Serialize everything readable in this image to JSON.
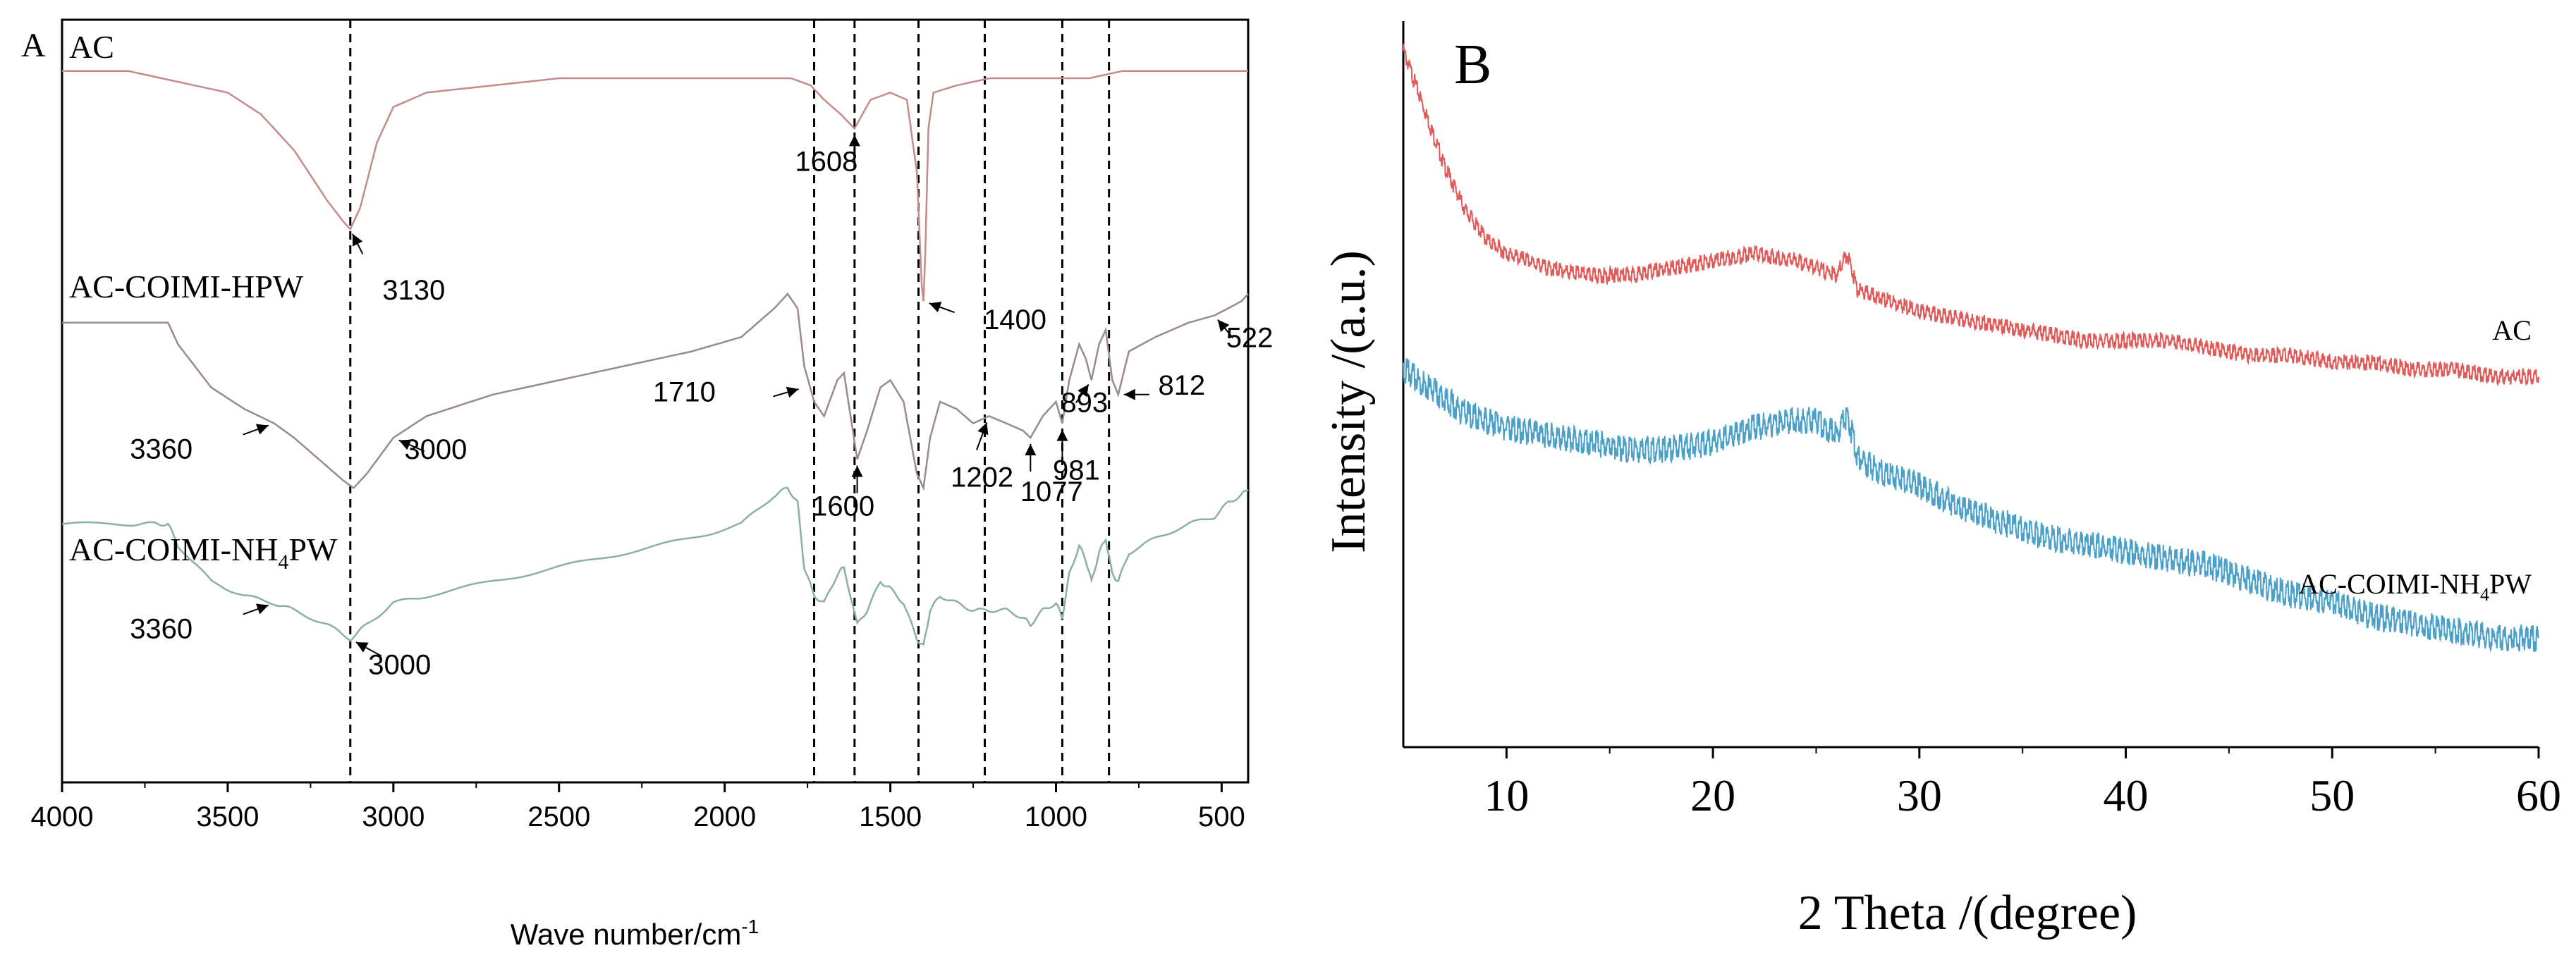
{
  "colors": {
    "ftir_ac": "#c58a8a",
    "ftir_hpw": "#9a8a8a",
    "ftir_nh4": "#8ab0a0",
    "xrd_ac": "#e05a5a",
    "xrd_nh4": "#4aa0c8",
    "axis": "#000000"
  },
  "chart_data": [
    {
      "type": "line",
      "panel_label": "A",
      "xlabel": "Wave number/cm",
      "xlabel_sup": "-1",
      "ylabel": "",
      "xlim": [
        4000,
        420
      ],
      "xticks": [
        4000,
        3500,
        3000,
        2500,
        2000,
        1500,
        1000,
        500
      ],
      "xtick_labels": [
        "4000",
        "3500",
        "3000",
        "2500",
        "2000",
        "1500",
        "1000",
        "500"
      ],
      "ylim": [
        0,
        100
      ],
      "reference_lines": [
        3130,
        1730,
        1608,
        1415,
        1215,
        981,
        840
      ],
      "series": [
        {
          "name": "AC",
          "label": "AC",
          "points": [
            [
              4000,
              96
            ],
            [
              3800,
              96
            ],
            [
              3700,
              95
            ],
            [
              3600,
              94
            ],
            [
              3500,
              93
            ],
            [
              3400,
              90
            ],
            [
              3300,
              85
            ],
            [
              3200,
              78
            ],
            [
              3150,
              75
            ],
            [
              3130,
              74
            ],
            [
              3100,
              77
            ],
            [
              3050,
              86
            ],
            [
              3000,
              91
            ],
            [
              2900,
              93
            ],
            [
              2700,
              94
            ],
            [
              2500,
              95
            ],
            [
              2300,
              95
            ],
            [
              2100,
              95
            ],
            [
              1900,
              95
            ],
            [
              1800,
              95
            ],
            [
              1740,
              94
            ],
            [
              1700,
              92
            ],
            [
              1650,
              90
            ],
            [
              1608,
              88
            ],
            [
              1560,
              92
            ],
            [
              1500,
              93
            ],
            [
              1450,
              92
            ],
            [
              1420,
              82
            ],
            [
              1405,
              66
            ],
            [
              1400,
              64
            ],
            [
              1395,
              70
            ],
            [
              1385,
              88
            ],
            [
              1370,
              93
            ],
            [
              1300,
              94
            ],
            [
              1200,
              95
            ],
            [
              1100,
              95
            ],
            [
              1000,
              95
            ],
            [
              900,
              95
            ],
            [
              800,
              96
            ],
            [
              700,
              96
            ],
            [
              600,
              96
            ],
            [
              500,
              96
            ],
            [
              420,
              96
            ]
          ]
        },
        {
          "name": "AC-COIMI-HPW",
          "label_prefix": "AC-COIMI-HPW",
          "label_sub": "",
          "label_suffix": "",
          "points": [
            [
              4000,
              61
            ],
            [
              3800,
              61
            ],
            [
              3720,
              61
            ],
            [
              3680,
              61
            ],
            [
              3650,
              58
            ],
            [
              3550,
              52
            ],
            [
              3450,
              49
            ],
            [
              3360,
              47
            ],
            [
              3300,
              45
            ],
            [
              3200,
              41
            ],
            [
              3150,
              39
            ],
            [
              3120,
              38
            ],
            [
              3080,
              40
            ],
            [
              3000,
              45
            ],
            [
              2900,
              48
            ],
            [
              2700,
              51
            ],
            [
              2500,
              53
            ],
            [
              2300,
              55
            ],
            [
              2100,
              57
            ],
            [
              1950,
              59
            ],
            [
              1850,
              63
            ],
            [
              1810,
              65
            ],
            [
              1780,
              63
            ],
            [
              1760,
              55
            ],
            [
              1730,
              50
            ],
            [
              1700,
              48
            ],
            [
              1660,
              53
            ],
            [
              1640,
              54
            ],
            [
              1600,
              42
            ],
            [
              1570,
              46
            ],
            [
              1530,
              52
            ],
            [
              1500,
              53
            ],
            [
              1460,
              50
            ],
            [
              1420,
              40
            ],
            [
              1400,
              38
            ],
            [
              1380,
              45
            ],
            [
              1350,
              50
            ],
            [
              1300,
              49
            ],
            [
              1250,
              47
            ],
            [
              1202,
              48
            ],
            [
              1150,
              47
            ],
            [
              1100,
              46
            ],
            [
              1077,
              45
            ],
            [
              1040,
              48
            ],
            [
              1000,
              50
            ],
            [
              981,
              47
            ],
            [
              960,
              53
            ],
            [
              930,
              58
            ],
            [
              910,
              56
            ],
            [
              893,
              53
            ],
            [
              870,
              58
            ],
            [
              850,
              60
            ],
            [
              830,
              53
            ],
            [
              812,
              51
            ],
            [
              780,
              57
            ],
            [
              700,
              59
            ],
            [
              600,
              61
            ],
            [
              522,
              62
            ],
            [
              480,
              63
            ],
            [
              440,
              64
            ],
            [
              420,
              65
            ]
          ]
        },
        {
          "name": "AC-COIMI-NH4PW",
          "label_prefix": "AC-COIMI-NH",
          "label_sub": "4",
          "label_suffix": "PW",
          "points": [
            [
              4000,
              33
            ],
            [
              3800,
              33
            ],
            [
              3720,
              33
            ],
            [
              3680,
              33
            ],
            [
              3650,
              30
            ],
            [
              3550,
              25
            ],
            [
              3450,
              23
            ],
            [
              3360,
              22
            ],
            [
              3300,
              21
            ],
            [
              3200,
              19
            ],
            [
              3130,
              17
            ],
            [
              3080,
              19
            ],
            [
              3000,
              22
            ],
            [
              2900,
              23
            ],
            [
              2700,
              25
            ],
            [
              2500,
              27
            ],
            [
              2300,
              29
            ],
            [
              2100,
              31
            ],
            [
              1950,
              33
            ],
            [
              1850,
              37
            ],
            [
              1810,
              38
            ],
            [
              1780,
              36
            ],
            [
              1760,
              27
            ],
            [
              1730,
              23
            ],
            [
              1700,
              22
            ],
            [
              1660,
              26
            ],
            [
              1640,
              27
            ],
            [
              1600,
              19
            ],
            [
              1570,
              21
            ],
            [
              1530,
              25
            ],
            [
              1500,
              24
            ],
            [
              1460,
              22
            ],
            [
              1420,
              17
            ],
            [
              1400,
              16
            ],
            [
              1380,
              21
            ],
            [
              1350,
              23
            ],
            [
              1300,
              22
            ],
            [
              1250,
              21
            ],
            [
              1202,
              21
            ],
            [
              1150,
              21
            ],
            [
              1100,
              20
            ],
            [
              1077,
              19
            ],
            [
              1040,
              21
            ],
            [
              1000,
              22
            ],
            [
              981,
              20
            ],
            [
              960,
              26
            ],
            [
              930,
              30
            ],
            [
              910,
              28
            ],
            [
              893,
              25
            ],
            [
              870,
              29
            ],
            [
              850,
              31
            ],
            [
              830,
              26
            ],
            [
              812,
              25
            ],
            [
              780,
              29
            ],
            [
              700,
              31
            ],
            [
              600,
              33
            ],
            [
              522,
              34
            ],
            [
              480,
              36
            ],
            [
              440,
              37
            ],
            [
              420,
              38
            ]
          ]
        }
      ],
      "annotations": [
        {
          "text": "3130",
          "at": [
            3130,
            74
          ]
        },
        {
          "text": "1608",
          "at": [
            1608,
            88
          ]
        },
        {
          "text": "1400",
          "at": [
            1400,
            64
          ]
        },
        {
          "text": "3360",
          "at": [
            3360,
            47
          ]
        },
        {
          "text": "3000",
          "at": [
            3000,
            45
          ]
        },
        {
          "text": "1710",
          "at": [
            1760,
            52
          ]
        },
        {
          "text": "1600",
          "at": [
            1600,
            42
          ]
        },
        {
          "text": "1202",
          "at": [
            1202,
            48
          ]
        },
        {
          "text": "1077",
          "at": [
            1077,
            45
          ]
        },
        {
          "text": "981",
          "at": [
            981,
            47
          ]
        },
        {
          "text": "893",
          "at": [
            893,
            53
          ]
        },
        {
          "text": "812",
          "at": [
            812,
            51
          ]
        },
        {
          "text": "522",
          "at": [
            522,
            62
          ]
        },
        {
          "text": "3360",
          "at": [
            3360,
            22
          ]
        },
        {
          "text": "3000",
          "at": [
            3130,
            17
          ]
        }
      ]
    },
    {
      "type": "line",
      "panel_label": "B",
      "xlabel": "2 Theta /(degree)",
      "ylabel": "Intensity /(a.u.)",
      "xlim": [
        5,
        60
      ],
      "xticks": [
        10,
        20,
        30,
        40,
        50,
        60
      ],
      "xtick_labels": [
        "10",
        "20",
        "30",
        "40",
        "50",
        "60"
      ],
      "ylim": [
        0,
        100
      ],
      "series": [
        {
          "name": "AC",
          "label": "AC",
          "points": [
            [
              5,
              96
            ],
            [
              6,
              88
            ],
            [
              7,
              80
            ],
            [
              8,
              74
            ],
            [
              9,
              70
            ],
            [
              10,
              68
            ],
            [
              12,
              66
            ],
            [
              14,
              65
            ],
            [
              16,
              65
            ],
            [
              18,
              66
            ],
            [
              20,
              67
            ],
            [
              22,
              68
            ],
            [
              24,
              67
            ],
            [
              26,
              65
            ],
            [
              26.5,
              68
            ],
            [
              27,
              63
            ],
            [
              28,
              62
            ],
            [
              30,
              60
            ],
            [
              32,
              59
            ],
            [
              34,
              58
            ],
            [
              36,
              57
            ],
            [
              38,
              56
            ],
            [
              40,
              56
            ],
            [
              42,
              56
            ],
            [
              44,
              55
            ],
            [
              46,
              54
            ],
            [
              48,
              54
            ],
            [
              50,
              53
            ],
            [
              52,
              53
            ],
            [
              54,
              52
            ],
            [
              56,
              52
            ],
            [
              58,
              51
            ],
            [
              60,
              51
            ]
          ]
        },
        {
          "name": "AC-COIMI-NH4PW",
          "label_prefix": "AC-COIMI-NH",
          "label_sub": "4",
          "label_suffix": "PW",
          "points": [
            [
              5,
              52
            ],
            [
              6,
              50
            ],
            [
              7,
              48
            ],
            [
              8,
              46
            ],
            [
              9,
              45
            ],
            [
              10,
              44
            ],
            [
              12,
              43
            ],
            [
              14,
              42
            ],
            [
              16,
              41
            ],
            [
              18,
              41
            ],
            [
              20,
              42
            ],
            [
              22,
              44
            ],
            [
              24,
              45
            ],
            [
              25,
              45
            ],
            [
              26,
              43
            ],
            [
              26.5,
              46
            ],
            [
              27,
              40
            ],
            [
              28,
              38
            ],
            [
              30,
              36
            ],
            [
              32,
              33
            ],
            [
              34,
              31
            ],
            [
              36,
              29
            ],
            [
              38,
              28
            ],
            [
              40,
              27
            ],
            [
              42,
              26
            ],
            [
              44,
              25
            ],
            [
              46,
              23
            ],
            [
              48,
              21
            ],
            [
              50,
              20
            ],
            [
              52,
              18
            ],
            [
              54,
              17
            ],
            [
              56,
              16
            ],
            [
              58,
              15
            ],
            [
              60,
              15
            ]
          ]
        }
      ]
    }
  ]
}
